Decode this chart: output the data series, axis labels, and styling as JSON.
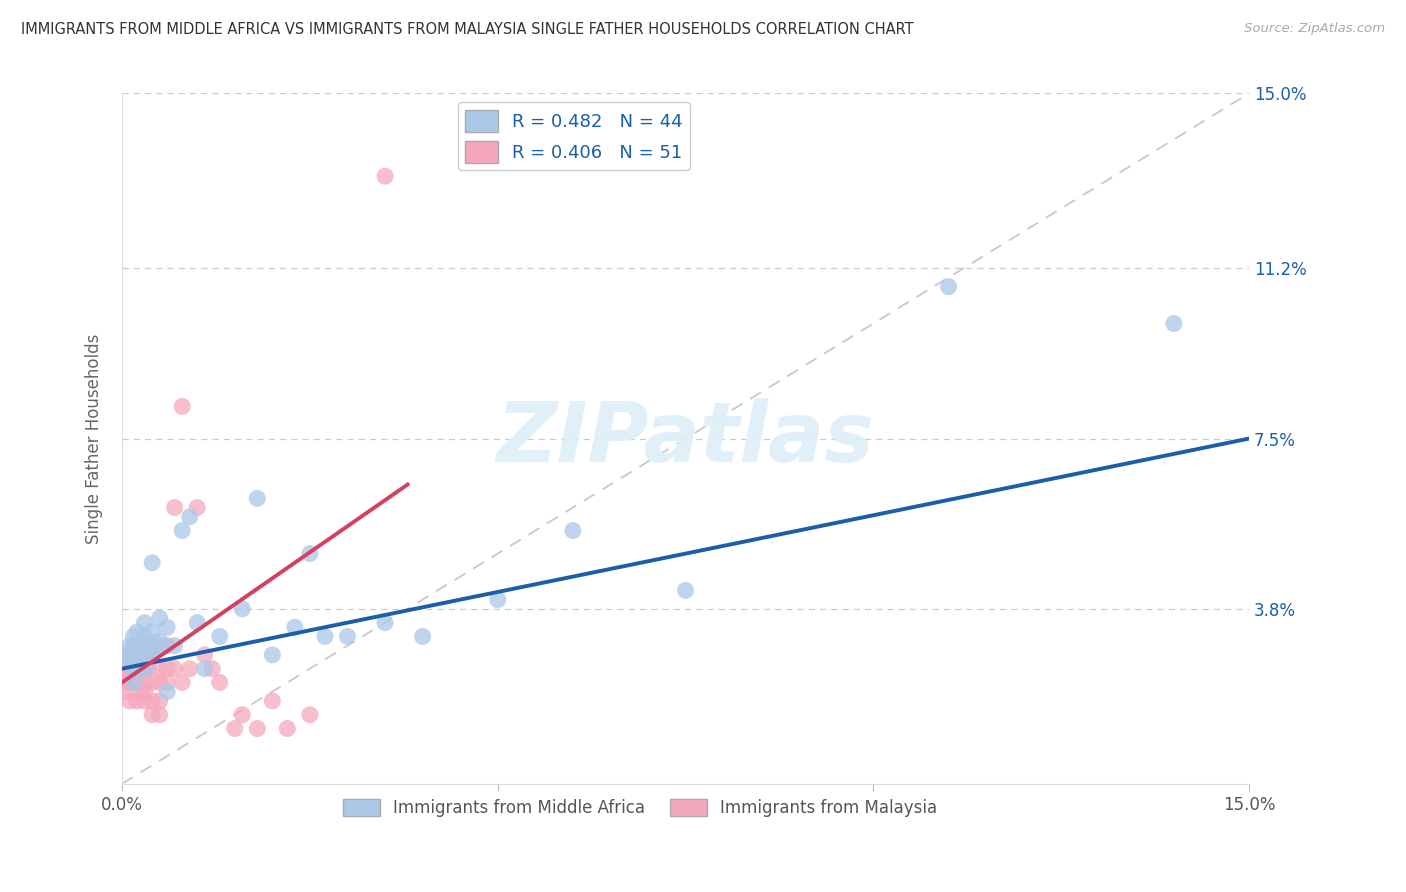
{
  "title": "IMMIGRANTS FROM MIDDLE AFRICA VS IMMIGRANTS FROM MALAYSIA SINGLE FATHER HOUSEHOLDS CORRELATION CHART",
  "source": "Source: ZipAtlas.com",
  "ylabel": "Single Father Households",
  "xlim": [
    0.0,
    0.15
  ],
  "ylim": [
    0.0,
    0.15
  ],
  "right_ytick_vals": [
    0.038,
    0.075,
    0.112,
    0.15
  ],
  "right_yticklabels": [
    "3.8%",
    "7.5%",
    "11.2%",
    "15.0%"
  ],
  "blue_R": 0.482,
  "blue_N": 44,
  "pink_R": 0.406,
  "pink_N": 51,
  "blue_scatter_color": "#aac8e8",
  "pink_scatter_color": "#f5a8bc",
  "blue_line_color": "#1a5fa8",
  "pink_line_color": "#d44060",
  "ref_line_color": "#c8c8c8",
  "legend_text_color": "#1a5fa8",
  "watermark_color": "#ddeef8",
  "watermark_text": "ZIPatlas",
  "blue_x": [
    0.0005,
    0.001,
    0.001,
    0.0015,
    0.0015,
    0.0015,
    0.002,
    0.002,
    0.002,
    0.002,
    0.003,
    0.003,
    0.003,
    0.003,
    0.003,
    0.004,
    0.004,
    0.004,
    0.004,
    0.005,
    0.005,
    0.005,
    0.006,
    0.006,
    0.007,
    0.008,
    0.009,
    0.01,
    0.011,
    0.013,
    0.016,
    0.018,
    0.02,
    0.023,
    0.025,
    0.027,
    0.03,
    0.035,
    0.04,
    0.05,
    0.06,
    0.075,
    0.11,
    0.14
  ],
  "blue_y": [
    0.028,
    0.03,
    0.027,
    0.032,
    0.025,
    0.022,
    0.03,
    0.028,
    0.025,
    0.033,
    0.03,
    0.035,
    0.028,
    0.025,
    0.032,
    0.03,
    0.028,
    0.033,
    0.048,
    0.031,
    0.036,
    0.03,
    0.034,
    0.02,
    0.03,
    0.055,
    0.058,
    0.035,
    0.025,
    0.032,
    0.038,
    0.062,
    0.028,
    0.034,
    0.05,
    0.032,
    0.032,
    0.035,
    0.032,
    0.04,
    0.055,
    0.042,
    0.108,
    0.1
  ],
  "pink_x": [
    0.0003,
    0.0005,
    0.0008,
    0.001,
    0.001,
    0.001,
    0.001,
    0.0015,
    0.0015,
    0.0015,
    0.002,
    0.002,
    0.002,
    0.002,
    0.002,
    0.0025,
    0.0025,
    0.003,
    0.003,
    0.003,
    0.003,
    0.003,
    0.003,
    0.0035,
    0.004,
    0.004,
    0.004,
    0.004,
    0.005,
    0.005,
    0.005,
    0.005,
    0.006,
    0.006,
    0.006,
    0.007,
    0.007,
    0.008,
    0.008,
    0.009,
    0.01,
    0.011,
    0.012,
    0.013,
    0.015,
    0.016,
    0.018,
    0.02,
    0.022,
    0.025,
    0.035
  ],
  "pink_y": [
    0.022,
    0.02,
    0.025,
    0.028,
    0.022,
    0.018,
    0.025,
    0.03,
    0.025,
    0.022,
    0.028,
    0.022,
    0.018,
    0.025,
    0.03,
    0.025,
    0.02,
    0.028,
    0.025,
    0.022,
    0.03,
    0.02,
    0.018,
    0.025,
    0.028,
    0.022,
    0.018,
    0.015,
    0.025,
    0.022,
    0.018,
    0.015,
    0.03,
    0.025,
    0.022,
    0.06,
    0.025,
    0.082,
    0.022,
    0.025,
    0.06,
    0.028,
    0.025,
    0.022,
    0.012,
    0.015,
    0.012,
    0.018,
    0.012,
    0.015,
    0.132
  ],
  "blue_line_x": [
    0.0,
    0.15
  ],
  "blue_line_y": [
    0.025,
    0.075
  ],
  "pink_line_x": [
    0.0,
    0.038
  ],
  "pink_line_y": [
    0.022,
    0.065
  ]
}
